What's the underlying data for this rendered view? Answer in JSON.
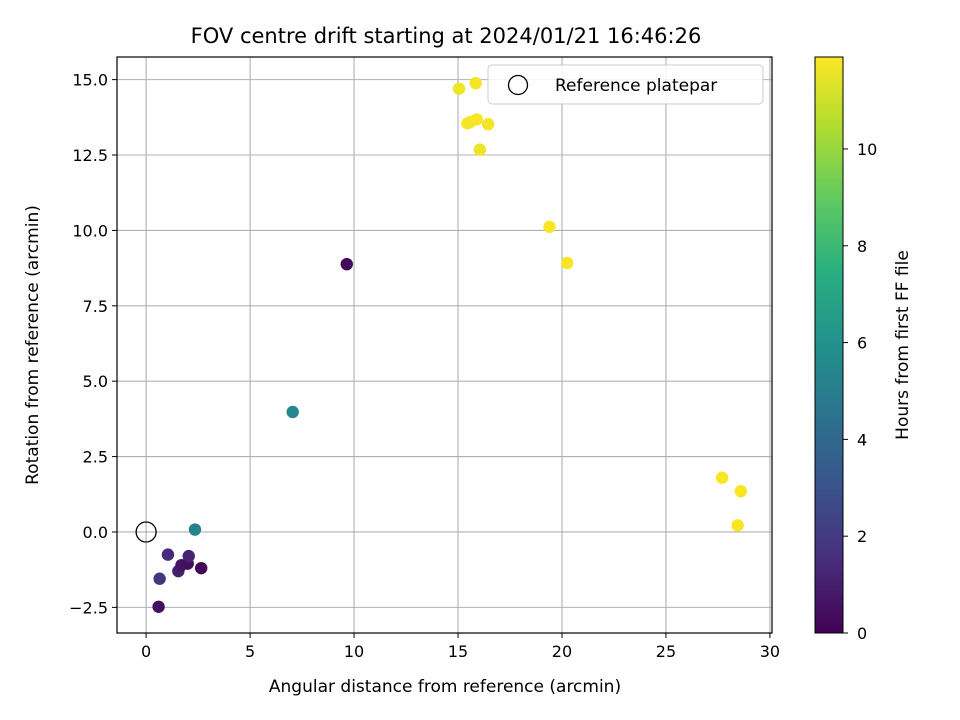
{
  "chart_data": {
    "type": "scatter",
    "title": "FOV centre drift starting at 2024/01/21 16:46:26",
    "xlabel": "Angular distance from reference (arcmin)",
    "ylabel": "Rotation from reference (arcmin)",
    "xlim": [
      -1.4,
      30.1
    ],
    "ylim": [
      -3.35,
      15.75
    ],
    "xticks": [
      0,
      5,
      10,
      15,
      20,
      25,
      30
    ],
    "yticks": [
      -2.5,
      0.0,
      2.5,
      5.0,
      7.5,
      10.0,
      12.5,
      15.0
    ],
    "xtick_labels": [
      "0",
      "5",
      "10",
      "15",
      "20",
      "25",
      "30"
    ],
    "ytick_labels": [
      "−2.5",
      "0.0",
      "2.5",
      "5.0",
      "7.5",
      "10.0",
      "12.5",
      "15.0"
    ],
    "grid": true,
    "colormap": "viridis",
    "colorbar": {
      "label": "Hours from first FF file",
      "range": [
        0,
        11.9
      ],
      "ticks": [
        0,
        2,
        4,
        6,
        8,
        10
      ],
      "tick_labels": [
        "0",
        "2",
        "4",
        "6",
        "8",
        "10"
      ]
    },
    "legend": {
      "placement": "top-right",
      "entries": [
        {
          "label": "Reference platepar",
          "marker": "open-circle",
          "color": "#000000"
        }
      ]
    },
    "reference_point": {
      "x": 0.0,
      "y": 0.0
    },
    "points": [
      {
        "x": 9.65,
        "y": 8.88,
        "hours": 0.3
      },
      {
        "x": 0.6,
        "y": -2.48,
        "hours": 0.5
      },
      {
        "x": 0.65,
        "y": -1.55,
        "hours": 1.8
      },
      {
        "x": 1.05,
        "y": -0.75,
        "hours": 1.4
      },
      {
        "x": 1.55,
        "y": -1.3,
        "hours": 1.0
      },
      {
        "x": 1.7,
        "y": -1.1,
        "hours": 0.6
      },
      {
        "x": 2.0,
        "y": -1.05,
        "hours": 0.4
      },
      {
        "x": 2.05,
        "y": -0.8,
        "hours": 1.2
      },
      {
        "x": 2.65,
        "y": -1.2,
        "hours": 0.2
      },
      {
        "x": 2.35,
        "y": 0.08,
        "hours": 5.3
      },
      {
        "x": 7.05,
        "y": 3.98,
        "hours": 5.5
      },
      {
        "x": 15.05,
        "y": 14.7,
        "hours": 11.6
      },
      {
        "x": 15.85,
        "y": 14.88,
        "hours": 11.7
      },
      {
        "x": 15.45,
        "y": 13.55,
        "hours": 11.8
      },
      {
        "x": 15.6,
        "y": 13.6,
        "hours": 11.7
      },
      {
        "x": 15.9,
        "y": 13.68,
        "hours": 11.8
      },
      {
        "x": 16.45,
        "y": 13.52,
        "hours": 11.7
      },
      {
        "x": 16.05,
        "y": 12.68,
        "hours": 11.6
      },
      {
        "x": 19.4,
        "y": 10.12,
        "hours": 11.8
      },
      {
        "x": 20.25,
        "y": 8.92,
        "hours": 11.8
      },
      {
        "x": 27.7,
        "y": 1.8,
        "hours": 11.8
      },
      {
        "x": 28.6,
        "y": 1.35,
        "hours": 11.8
      },
      {
        "x": 28.45,
        "y": 0.22,
        "hours": 11.8
      }
    ]
  }
}
